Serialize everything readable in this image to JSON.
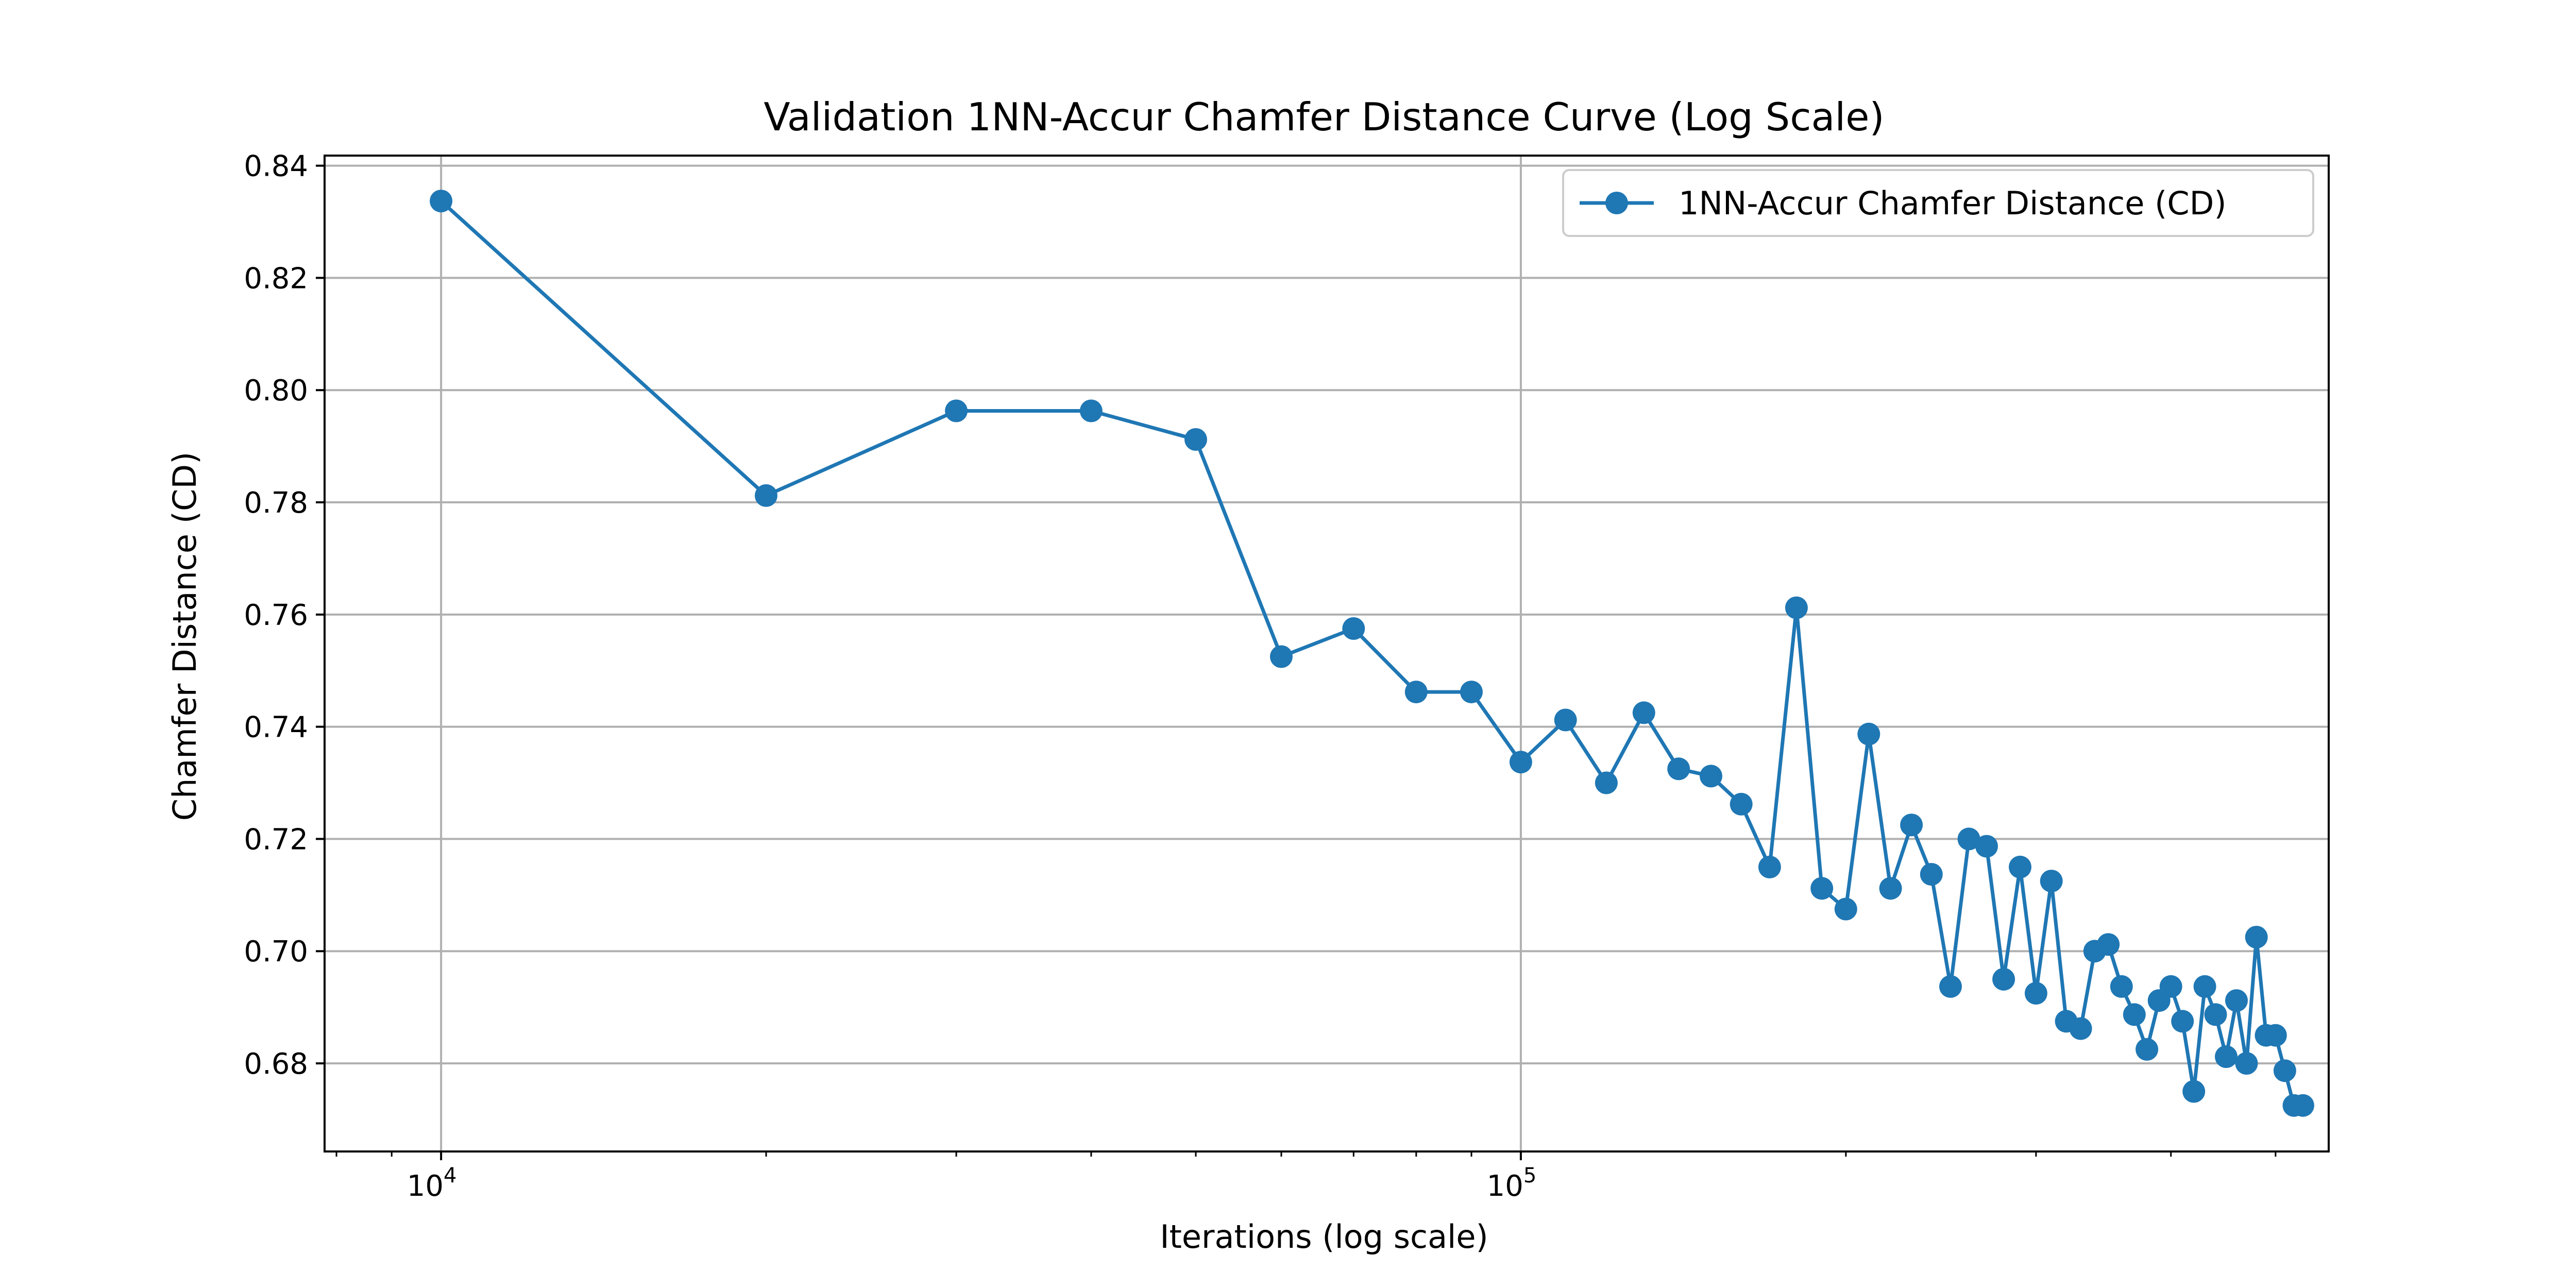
{
  "chart_data": {
    "type": "line",
    "title": "Validation 1NN-Accur Chamfer Distance Curve (Log Scale)",
    "xlabel": "Iterations (log scale)",
    "ylabel": "Chamfer Distance (CD)",
    "xscale": "log",
    "xlim": [
      7800,
      560000
    ],
    "ylim": [
      0.6643,
      0.8418
    ],
    "x_ticks": [
      {
        "value": 10000,
        "base": "10",
        "exp": "4"
      },
      {
        "value": 100000,
        "base": "10",
        "exp": "5"
      }
    ],
    "y_ticks": [
      "0.68",
      "0.70",
      "0.72",
      "0.74",
      "0.76",
      "0.78",
      "0.80",
      "0.82",
      "0.84"
    ],
    "grid": true,
    "legend_position": "top-right",
    "series": [
      {
        "name": "1NN-Accur Chamfer Distance (CD)",
        "color": "#1f77b4",
        "marker": "circle",
        "x": [
          10000,
          20000,
          30000,
          40000,
          50000,
          60000,
          70000,
          80000,
          90000,
          100000,
          110000,
          120000,
          130000,
          140000,
          150000,
          160000,
          170000,
          180000,
          190000,
          200000,
          210000,
          220000,
          230000,
          240000,
          250000,
          260000,
          270000,
          280000,
          290000,
          300000,
          310000,
          320000,
          330000,
          340000,
          350000,
          360000,
          370000,
          380000,
          390000,
          400000,
          410000,
          420000,
          430000,
          440000,
          450000,
          460000,
          470000,
          480000,
          490000,
          500000,
          510000,
          520000,
          530000
        ],
        "y": [
          0.8337,
          0.7812,
          0.7963,
          0.7963,
          0.7912,
          0.7525,
          0.7575,
          0.7462,
          0.7462,
          0.7337,
          0.7412,
          0.73,
          0.7425,
          0.7325,
          0.7312,
          0.7262,
          0.715,
          0.7612,
          0.7112,
          0.7075,
          0.7387,
          0.7112,
          0.7225,
          0.7137,
          0.6937,
          0.72,
          0.7187,
          0.695,
          0.715,
          0.6925,
          0.7125,
          0.6875,
          0.6862,
          0.7,
          0.7012,
          0.6937,
          0.6887,
          0.6825,
          0.6912,
          0.6937,
          0.6875,
          0.675,
          0.6937,
          0.6887,
          0.6812,
          0.6912,
          0.68,
          0.7025,
          0.685,
          0.685,
          0.6787,
          0.6725,
          0.6725
        ]
      }
    ]
  }
}
